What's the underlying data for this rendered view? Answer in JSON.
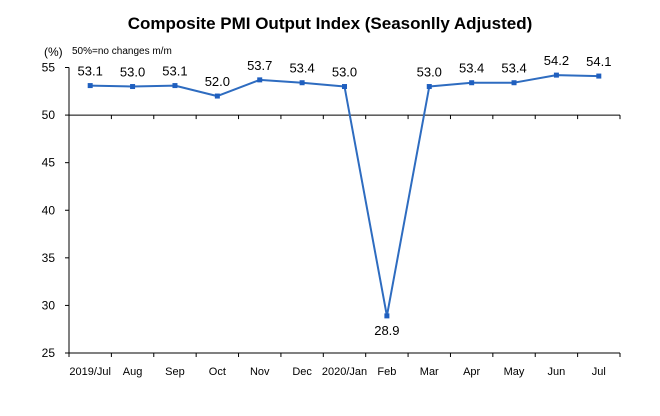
{
  "chart_data": {
    "type": "line",
    "title": "Composite PMI Output Index (Seasonlly Adjusted)",
    "ylabel": "(%)",
    "note": "50%=no changes  m/m",
    "categories": [
      "2019/Jul",
      "Aug",
      "Sep",
      "Oct",
      "Nov",
      "Dec",
      "2020/Jan",
      "Feb",
      "Mar",
      "Apr",
      "May",
      "Jun",
      "Jul"
    ],
    "values": [
      53.1,
      53.0,
      53.1,
      52.0,
      53.7,
      53.4,
      53.0,
      28.9,
      53.0,
      53.4,
      53.4,
      54.2,
      54.1
    ],
    "data_labels": [
      "53.1",
      "53.0",
      "53.1",
      "52.0",
      "53.7",
      "53.4",
      "53.0",
      "28.9",
      "53.0",
      "53.4",
      "53.4",
      "54.2",
      "54.1"
    ],
    "ylim": [
      25,
      55
    ],
    "yticks": [
      25,
      30,
      35,
      40,
      45,
      50,
      55
    ],
    "baseline": 50,
    "grid": false,
    "legend": "none",
    "colors": {
      "line": "#2e6cc0",
      "marker": "#1f5fbf",
      "axis": "#000000"
    }
  }
}
